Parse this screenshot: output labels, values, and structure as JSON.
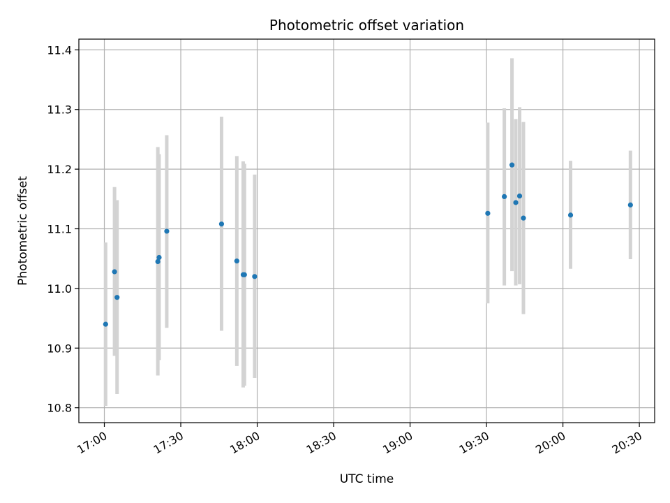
{
  "chart_data": {
    "type": "scatter",
    "title": "Photometric offset variation",
    "xlabel": "UTC time",
    "ylabel": "Photometric offset",
    "x_axis_kind": "time",
    "xlim": [
      "16:50",
      "20:36"
    ],
    "ylim": [
      10.775,
      11.418
    ],
    "x_ticks": [
      "17:00",
      "17:30",
      "18:00",
      "18:30",
      "19:00",
      "19:30",
      "20:00",
      "20:30"
    ],
    "y_ticks": [
      10.8,
      10.9,
      11.0,
      11.1,
      11.2,
      11.3,
      11.4
    ],
    "grid": true,
    "marker_color": "#1f77b4",
    "errorbar_color": "#d3d3d3",
    "points": [
      {
        "t": "17:00:30",
        "y": 10.94,
        "lo": 10.803,
        "hi": 11.077
      },
      {
        "t": "17:04:00",
        "y": 11.028,
        "lo": 10.887,
        "hi": 11.17
      },
      {
        "t": "17:05:00",
        "y": 10.985,
        "lo": 10.823,
        "hi": 11.148
      },
      {
        "t": "17:21:00",
        "y": 11.045,
        "lo": 10.854,
        "hi": 11.237
      },
      {
        "t": "17:21:30",
        "y": 11.052,
        "lo": 10.88,
        "hi": 11.225
      },
      {
        "t": "17:24:30",
        "y": 11.096,
        "lo": 10.934,
        "hi": 11.257
      },
      {
        "t": "17:46:00",
        "y": 11.108,
        "lo": 10.929,
        "hi": 11.288
      },
      {
        "t": "17:52:00",
        "y": 11.046,
        "lo": 10.87,
        "hi": 11.222
      },
      {
        "t": "17:54:30",
        "y": 11.023,
        "lo": 10.834,
        "hi": 11.213
      },
      {
        "t": "17:55:00",
        "y": 11.023,
        "lo": 10.837,
        "hi": 11.209
      },
      {
        "t": "17:59:00",
        "y": 11.02,
        "lo": 10.85,
        "hi": 11.191
      },
      {
        "t": "19:30:30",
        "y": 11.126,
        "lo": 10.975,
        "hi": 11.278
      },
      {
        "t": "19:37:00",
        "y": 11.154,
        "lo": 11.005,
        "hi": 11.302
      },
      {
        "t": "19:40:00",
        "y": 11.207,
        "lo": 11.029,
        "hi": 11.386
      },
      {
        "t": "19:41:30",
        "y": 11.144,
        "lo": 11.005,
        "hi": 11.284
      },
      {
        "t": "19:43:00",
        "y": 11.155,
        "lo": 11.007,
        "hi": 11.304
      },
      {
        "t": "19:44:30",
        "y": 11.118,
        "lo": 10.957,
        "hi": 11.279
      },
      {
        "t": "20:03:00",
        "y": 11.123,
        "lo": 11.033,
        "hi": 11.214
      },
      {
        "t": "20:26:30",
        "y": 11.14,
        "lo": 11.049,
        "hi": 11.231
      }
    ]
  }
}
